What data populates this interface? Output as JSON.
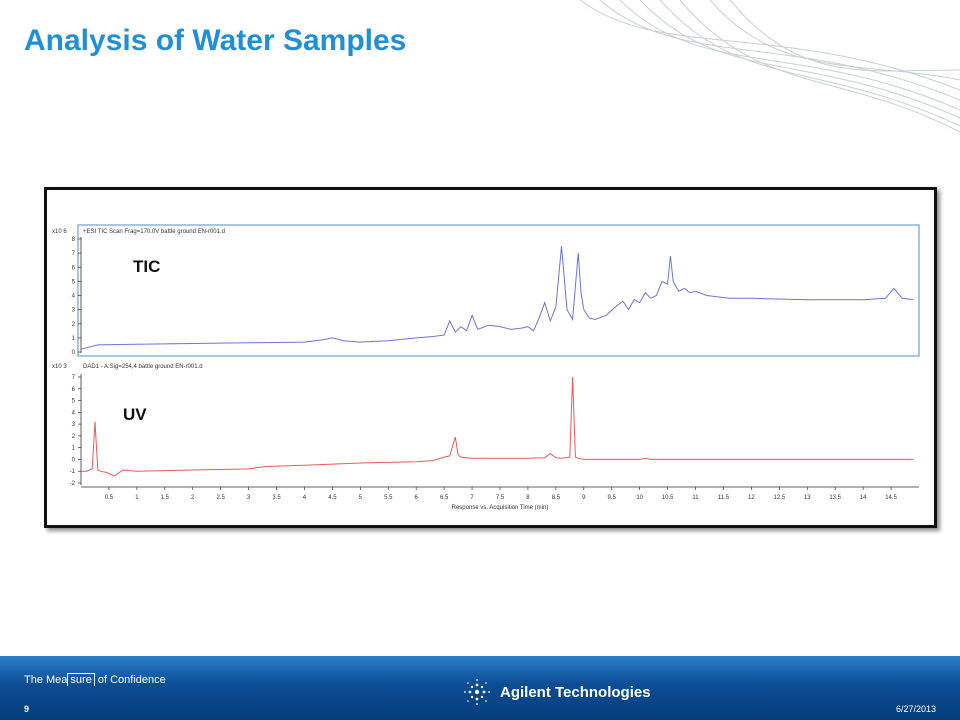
{
  "slide": {
    "title": "Analysis of Water Samples",
    "page_number": "9",
    "date": "6/27/2013",
    "tagline_prefix": "The Mea",
    "tagline_boxed": "sure",
    "tagline_suffix": " of Confidence",
    "brand": "Agilent Technologies"
  },
  "colors": {
    "title": "#1f8fd8",
    "footer": "#0b4d94",
    "tic_line": "#6b75d8",
    "uv_line": "#e85a5a",
    "tic_frame": "#6f9fd8"
  },
  "chart_data": [
    {
      "type": "line",
      "panel_label": "TIC",
      "trace_label": "+ESI TIC Scan Frag=170.0V battle ground EN-r001.d",
      "scale_label": "x10 6",
      "ylim": [
        0,
        8
      ],
      "yticks": [
        0,
        1,
        2,
        3,
        4,
        5,
        6,
        7,
        8
      ],
      "series": [
        {
          "x": [
            0.0,
            0.3,
            1.0,
            2.0,
            3.0,
            4.0,
            4.3,
            4.5,
            4.7,
            5.0,
            5.5,
            6.0,
            6.3,
            6.5,
            6.6,
            6.7,
            6.8,
            6.9,
            7.0,
            7.1,
            7.3,
            7.5,
            7.7,
            7.9,
            8.0,
            8.1,
            8.2,
            8.3,
            8.4,
            8.5,
            8.6,
            8.7,
            8.8,
            8.9,
            8.95,
            9.0,
            9.1,
            9.2,
            9.4,
            9.6,
            9.7,
            9.8,
            9.9,
            10.0,
            10.1,
            10.2,
            10.3,
            10.4,
            10.5,
            10.55,
            10.6,
            10.7,
            10.8,
            10.9,
            11.0,
            11.2,
            11.4,
            11.6,
            11.8,
            12.0,
            13.0,
            14.0,
            14.4,
            14.55,
            14.7,
            14.9
          ],
          "y": [
            0.2,
            0.5,
            0.55,
            0.6,
            0.65,
            0.7,
            0.85,
            1.0,
            0.8,
            0.7,
            0.8,
            1.0,
            1.1,
            1.2,
            2.2,
            1.4,
            1.8,
            1.5,
            2.6,
            1.6,
            1.9,
            1.8,
            1.6,
            1.7,
            1.8,
            1.5,
            2.4,
            3.5,
            2.2,
            3.2,
            7.5,
            3.0,
            2.3,
            7.0,
            4.2,
            3.0,
            2.4,
            2.3,
            2.6,
            3.3,
            3.6,
            3.0,
            3.7,
            3.5,
            4.2,
            3.8,
            4.0,
            5.0,
            4.8,
            6.8,
            5.0,
            4.3,
            4.5,
            4.2,
            4.3,
            4.0,
            3.9,
            3.8,
            3.8,
            3.8,
            3.7,
            3.7,
            3.8,
            4.5,
            3.8,
            3.7
          ]
        }
      ]
    },
    {
      "type": "line",
      "panel_label": "UV",
      "trace_label": "DAD1 - A:Sig=254,4 battle ground EN-r001.d",
      "scale_label": "x10 3",
      "ylim": [
        -2,
        7
      ],
      "yticks": [
        -2,
        -1,
        0,
        1,
        2,
        3,
        4,
        5,
        6,
        7
      ],
      "xlabel": "Response vs. Acquisition Time (min)",
      "xlim": [
        0,
        15
      ],
      "xticks": [
        "0.5",
        "1",
        "1.5",
        "2",
        "2.5",
        "3",
        "3.5",
        "4",
        "4.5",
        "5",
        "5.5",
        "6",
        "6.5",
        "7",
        "7.5",
        "8",
        "8.5",
        "9",
        "9.5",
        "10",
        "10.5",
        "11",
        "11.5",
        "12",
        "12.5",
        "13",
        "13.5",
        "14",
        "14.5"
      ],
      "series": [
        {
          "x": [
            0.0,
            0.1,
            0.2,
            0.25,
            0.3,
            0.35,
            0.45,
            0.6,
            0.75,
            1.0,
            2.0,
            3.0,
            3.3,
            4.0,
            5.0,
            6.0,
            6.3,
            6.5,
            6.6,
            6.7,
            6.75,
            6.8,
            6.9,
            7.0,
            7.5,
            8.0,
            8.3,
            8.4,
            8.5,
            8.6,
            8.75,
            8.8,
            8.85,
            8.9,
            9.0,
            10.0,
            10.1,
            10.2,
            11.0,
            12.0,
            13.0,
            14.0,
            14.9
          ],
          "y": [
            -1.0,
            -1.0,
            -0.8,
            3.2,
            -0.9,
            -1.0,
            -1.1,
            -1.4,
            -0.9,
            -1.0,
            -0.9,
            -0.8,
            -0.6,
            -0.5,
            -0.3,
            -0.2,
            -0.1,
            0.2,
            0.3,
            1.9,
            0.4,
            0.2,
            0.15,
            0.1,
            0.1,
            0.1,
            0.15,
            0.5,
            0.15,
            0.1,
            0.2,
            7.0,
            0.2,
            0.1,
            0.0,
            0.0,
            0.1,
            0.0,
            0.0,
            0.0,
            0.0,
            0.0,
            0.0
          ]
        }
      ]
    }
  ]
}
